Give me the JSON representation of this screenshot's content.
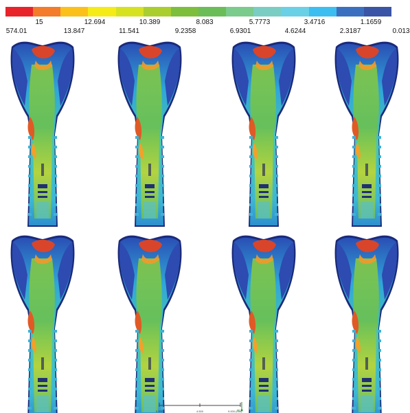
{
  "legend": {
    "colors": [
      "#e8232a",
      "#f37b29",
      "#fbc11a",
      "#f5eb16",
      "#d6e21f",
      "#a9ce2e",
      "#7ebe3d",
      "#6bbd58",
      "#7acb8c",
      "#7acdc2",
      "#6ad0e6",
      "#3dbef0",
      "#3b70c0",
      "#3a55a6"
    ],
    "labels_top": [
      "15",
      "12.694",
      "10.389",
      "8.083",
      "5.7773",
      "3.4716",
      "1.1659"
    ],
    "labels_bottom": [
      "574.01",
      "13.847",
      "11.541",
      "9.2358",
      "6.9301",
      "4.6244",
      "2.3187",
      "0.013"
    ]
  },
  "models": [
    {
      "id": "model-1"
    },
    {
      "id": "model-2"
    },
    {
      "id": "model-3"
    },
    {
      "id": "model-4"
    },
    {
      "id": "model-5"
    },
    {
      "id": "model-6"
    },
    {
      "id": "model-7"
    },
    {
      "id": "model-8"
    }
  ],
  "scale_bar": {
    "labels": [
      "0.000",
      "4.500",
      "9.000 (mm)"
    ]
  }
}
